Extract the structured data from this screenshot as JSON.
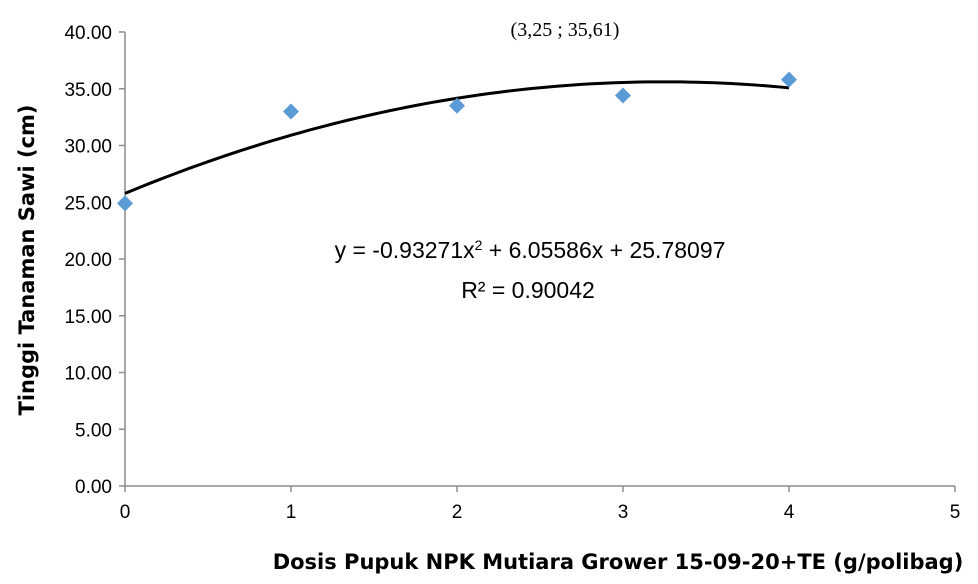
{
  "chart_data": {
    "type": "scatter",
    "xlabel": "Dosis Pupuk NPK Mutiara Grower 15-09-20+TE (g/polibag)",
    "ylabel": "Tinggi Tanaman Sawi (cm)",
    "xlim": [
      0,
      5
    ],
    "ylim": [
      0,
      40
    ],
    "x_ticks": [
      "0",
      "1",
      "2",
      "3",
      "4",
      "5"
    ],
    "y_ticks": [
      "0.00",
      "5.00",
      "10.00",
      "15.00",
      "20.00",
      "25.00",
      "30.00",
      "35.00",
      "40.00"
    ],
    "points": [
      {
        "x": 0,
        "y": 24.9
      },
      {
        "x": 1,
        "y": 33.0
      },
      {
        "x": 2,
        "y": 33.5
      },
      {
        "x": 3,
        "y": 34.4
      },
      {
        "x": 4,
        "y": 35.8
      }
    ],
    "marker_color": "#5b9bd5",
    "trendline": {
      "type": "polynomial",
      "coefficients": [
        -0.93271,
        6.05586,
        25.78097
      ],
      "x_range": [
        0,
        4
      ],
      "color": "#000000"
    },
    "equation_text": "y = -0.93271x",
    "equation_superscript": "2",
    "equation_rest": " + 6.05586x + 25.78097",
    "r2_text": "R² = 0.90042",
    "annotation": "(3,25 ; 35,61)",
    "grid": false,
    "legend": "none"
  }
}
